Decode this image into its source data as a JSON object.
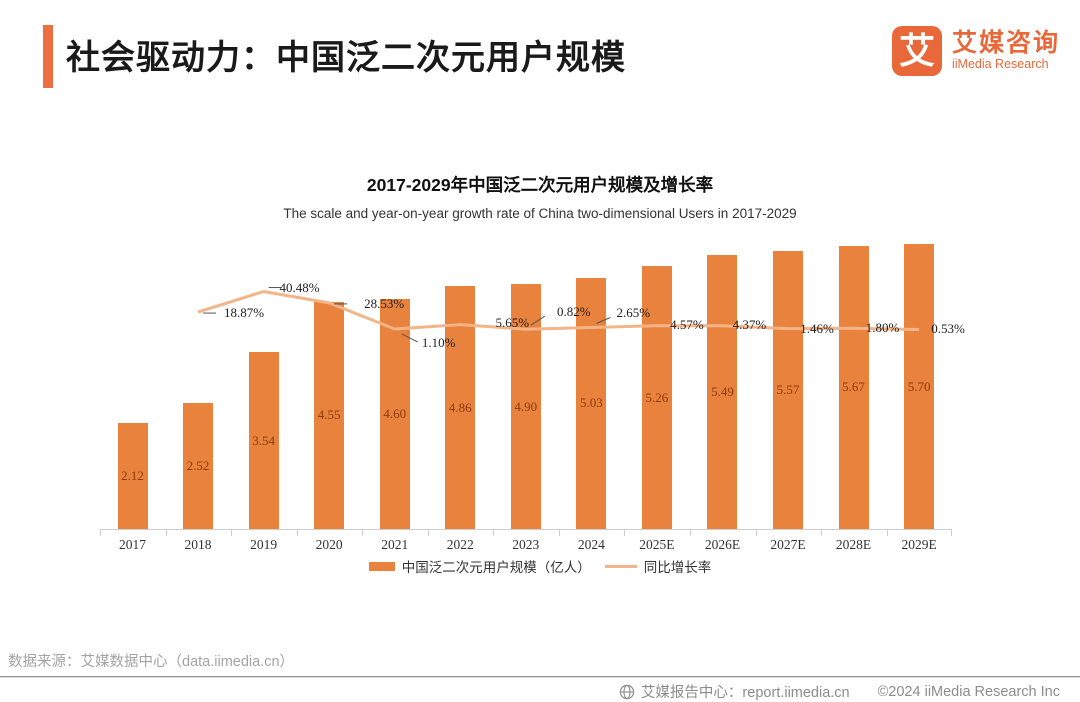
{
  "header": {
    "title": "社会驱动力：中国泛二次元用户规模",
    "accent_color": "#ED6E42",
    "logo": {
      "glyph": "艾",
      "name_cn": "艾媒咨询",
      "name_en": "iiMedia Research",
      "color": "#E8683A"
    }
  },
  "chart_data": {
    "type": "bar+line",
    "title": "2017-2029年中国泛二次元用户规模及增长率",
    "subtitle": "The scale and year-on-year growth rate of China two-dimensional Users in 2017-2029",
    "categories": [
      "2017",
      "2018",
      "2019",
      "2020",
      "2021",
      "2022",
      "2023",
      "2024",
      "2025E",
      "2026E",
      "2027E",
      "2028E",
      "2029E"
    ],
    "series": [
      {
        "name": "中国泛二次元用户规模（亿人）",
        "type": "bar",
        "color": "#E8823C",
        "label_color": "#8B3A0E",
        "values": [
          2.12,
          2.52,
          3.54,
          4.55,
          4.6,
          4.86,
          4.9,
          5.03,
          5.26,
          5.49,
          5.57,
          5.67,
          5.7
        ],
        "labels": [
          "2.12",
          "2.52",
          "3.54",
          "4.55",
          "4.60",
          "4.86",
          "4.90",
          "5.03",
          "5.26",
          "5.49",
          "5.57",
          "5.67",
          "5.70"
        ]
      },
      {
        "name": "同比增长率",
        "type": "line",
        "color": "#F3B487",
        "values": [
          null,
          18.87,
          40.48,
          28.53,
          1.1,
          5.65,
          0.82,
          2.65,
          4.57,
          4.37,
          1.46,
          1.8,
          0.53
        ],
        "labels": [
          null,
          "18.87%",
          "40.48%",
          "28.53%",
          "1.10%",
          "5.65%",
          "0.82%",
          "2.65%",
          "4.57%",
          "4.37%",
          "1.46%",
          "1.80%",
          "0.53%"
        ]
      }
    ],
    "ylim_bars": [
      0,
      6.3
    ],
    "grid": false,
    "legend_position": "bottom"
  },
  "footer": {
    "source": "数据来源：艾媒数据中心（data.iimedia.cn）"
  },
  "bottom_bar": {
    "report_center": "艾媒报告中心：report.iimedia.cn",
    "copyright": "©2024  iiMedia Research Inc"
  }
}
